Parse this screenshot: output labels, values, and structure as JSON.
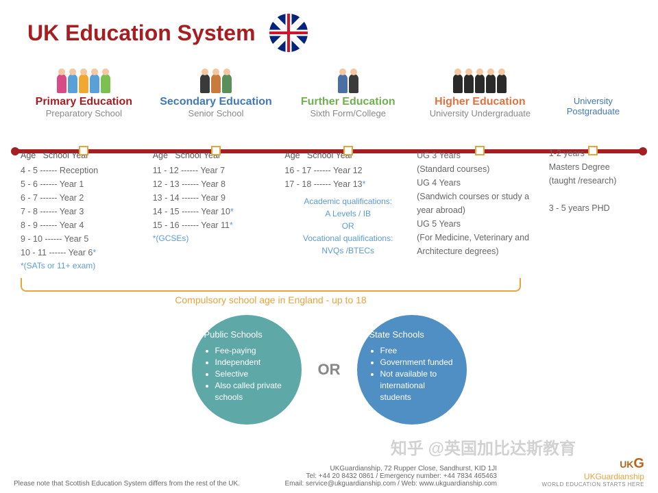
{
  "title": "UK Education System",
  "title_color": "#a41e22",
  "timeline_color": "#a41e22",
  "marker_border_color": "#e8a33d",
  "accent_color": "#5b9bd5",
  "stages": [
    {
      "heading": "Primary Education",
      "heading_color": "#a41e22",
      "subheading": "Preparatory School",
      "icon_colors": [
        "#d94b87",
        "#5aa0d8",
        "#f0a830",
        "#5aa0d8",
        "#7cc04f"
      ],
      "list_header_left": "Age",
      "list_header_right": "School Year",
      "rows": [
        {
          "age": "4 - 5",
          "year": "Reception"
        },
        {
          "age": "5 - 6",
          "year": "Year 1"
        },
        {
          "age": "6 - 7",
          "year": "Year 2"
        },
        {
          "age": "7 - 8",
          "year": "Year 3"
        },
        {
          "age": "8 - 9",
          "year": "Year 4"
        },
        {
          "age": "9 - 10",
          "year": "Year 5"
        },
        {
          "age": "10 - 11",
          "year": "Year 6",
          "star": true
        }
      ],
      "note": "*(SATs or 11+  exam)"
    },
    {
      "heading": "Secondary Education",
      "heading_color": "#4178b5",
      "subheading": "Senior School",
      "icon_colors": [
        "#3a3a3a",
        "#c97b3e",
        "#5a8f5a"
      ],
      "list_header_left": "Age",
      "list_header_right": "School Year",
      "rows": [
        {
          "age": "11 - 12",
          "year": "Year 7"
        },
        {
          "age": "12 - 13",
          "year": "Year 8"
        },
        {
          "age": "13 - 14",
          "year": "Year 9"
        },
        {
          "age": "14 - 15",
          "year": "Year 10",
          "star": true
        },
        {
          "age": "15 - 16",
          "year": "Year 11",
          "star": true
        }
      ],
      "note": "*(GCSEs)"
    },
    {
      "heading": "Further Education",
      "heading_color": "#6fb04f",
      "subheading": "Sixth Form/College",
      "icon_colors": [
        "#4a6fa5",
        "#3a3a3a"
      ],
      "list_header_left": "Age",
      "list_header_right": "School Year",
      "rows": [
        {
          "age": "16 - 17",
          "year": "Year 12"
        },
        {
          "age": "17 - 18",
          "year": "Year 13",
          "star": true
        }
      ],
      "qual_lines": [
        "Academic qualifications:",
        "A Levels / IB",
        "OR",
        "Vocational qualifications:",
        "NVQs /BTECs"
      ]
    },
    {
      "heading": "Higher Education",
      "heading_color": "#e07242",
      "subheading": "University Undergraduate",
      "icon_colors": [
        "#2a2a2a",
        "#2a2a2a",
        "#2a2a2a",
        "#2a2a2a",
        "#2a2a2a"
      ],
      "lines": [
        "UG 3 Years",
        "(Standard courses)",
        "UG 4 Years",
        "(Sandwich courses or study a year abroad)",
        "UG 5 Years",
        "(For Medicine, Veterinary and Architecture degrees)"
      ]
    },
    {
      "heading": "",
      "heading_color": "#4178b5",
      "subheading_top": "University",
      "subheading": "Postgraduate",
      "lines": [
        "1-2 years",
        "Masters Degree",
        "(taught /research)",
        "",
        "3 - 5 years PHD"
      ]
    }
  ],
  "bracket_label": "Compulsory school age in England - up to 18",
  "bracket_color": "#e8a33d",
  "or_label": "OR",
  "circles": [
    {
      "title": "Public Schools",
      "bg": "#5fa8a8",
      "items": [
        "Fee-paying",
        "Independent",
        "Selective",
        "Also called private schools"
      ]
    },
    {
      "title": "State Schools",
      "bg": "#4f8fc4",
      "items": [
        "Free",
        "Government funded",
        "Not available to international students"
      ]
    }
  ],
  "footer_note": "Please note that Scottish Education System differs from the rest of the UK.",
  "contact": {
    "line1": "UKGuardianship, 72 Rupper Close, Sandhurst, KID 1JI",
    "line2": "Tel: +44 20 8432 0861 / Emergency number: +44 7834 465463",
    "line3": "Email: service@ukguardianship.com / Web: www.ukguardianship.com"
  },
  "brand_prefix": "UK",
  "brand_suffix": "Guardianship",
  "brand_big": "G",
  "tagline": "WORLD EDUCATION STARTS HERE",
  "watermark": "知乎 @英国加比达斯教育"
}
